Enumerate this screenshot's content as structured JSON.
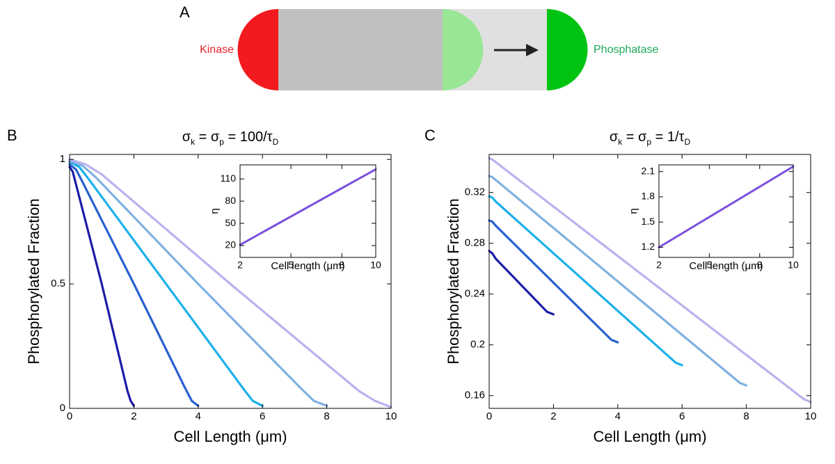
{
  "panel_labels": [
    "A",
    "B",
    "C"
  ],
  "diagram": {
    "left_label": "Kinase",
    "right_label": "Phosphatase"
  },
  "chart_data": [
    {
      "type": "line",
      "title": [
        "σ",
        "k",
        " = σ",
        "p",
        " = 100/τ",
        "D"
      ],
      "xlabel": "Cell Length (μm)",
      "ylabel": "Phosphorylated Fraction",
      "xlim": [
        0,
        10
      ],
      "ylim": [
        0,
        1.02
      ],
      "xticks": [
        0,
        2,
        4,
        6,
        8,
        10
      ],
      "yticks": [
        0,
        0.5,
        1
      ],
      "series": [
        {
          "color": "#1c1ca8",
          "x": [
            0,
            0.1,
            0.2,
            1,
            1.8,
            1.9,
            2
          ],
          "values": [
            0.97,
            0.95,
            0.9,
            0.5,
            0.07,
            0.03,
            0.01
          ]
        },
        {
          "color": "#2860d0",
          "x": [
            0,
            0.2,
            0.4,
            2,
            3.6,
            3.8,
            4
          ],
          "values": [
            0.98,
            0.96,
            0.91,
            0.5,
            0.08,
            0.03,
            0.01
          ]
        },
        {
          "color": "#1ab0ea",
          "x": [
            0,
            0.3,
            0.6,
            3,
            5.4,
            5.7,
            6
          ],
          "values": [
            0.99,
            0.97,
            0.92,
            0.5,
            0.08,
            0.03,
            0.01
          ]
        },
        {
          "color": "#80b0e2",
          "x": [
            0,
            0.4,
            0.8,
            4,
            7.2,
            7.6,
            8
          ],
          "values": [
            0.995,
            0.975,
            0.93,
            0.5,
            0.08,
            0.03,
            0.01
          ]
        },
        {
          "color": "#b8b2ee",
          "x": [
            0,
            0.5,
            1,
            5,
            9,
            9.5,
            10
          ],
          "values": [
            1,
            0.98,
            0.94,
            0.5,
            0.07,
            0.03,
            0.005
          ]
        }
      ]
    },
    {
      "type": "line",
      "xlabel": "Cell length (μm)",
      "ylabel": "η",
      "xlim": [
        2,
        10
      ],
      "ylim": [
        4,
        129
      ],
      "xticks": [
        2,
        5,
        8,
        10
      ],
      "yticks": [
        20,
        50,
        80,
        110
      ],
      "series": [
        {
          "color": "#7a4fe0",
          "x": [
            2,
            10
          ],
          "values": [
            21,
            123
          ]
        }
      ]
    },
    {
      "type": "line",
      "title": [
        "σ",
        "k",
        " = σ",
        "p",
        " = 1/τ",
        "D"
      ],
      "xlabel": "Cell Length (μm)",
      "ylabel": "Phosphorylated Fraction",
      "xlim": [
        0,
        10
      ],
      "ylim": [
        0.15,
        0.35
      ],
      "xticks": [
        0,
        2,
        4,
        6,
        8,
        10
      ],
      "yticks": [
        0.16,
        0.2,
        0.24,
        0.28,
        0.32
      ],
      "series": [
        {
          "color": "#1c1ca8",
          "x": [
            0,
            0.1,
            0.2,
            1.8,
            2
          ],
          "values": [
            0.274,
            0.272,
            0.268,
            0.226,
            0.224
          ]
        },
        {
          "color": "#2860d0",
          "x": [
            0,
            0.1,
            0.2,
            3.8,
            4
          ],
          "values": [
            0.298,
            0.297,
            0.294,
            0.204,
            0.202
          ]
        },
        {
          "color": "#1ab0ea",
          "x": [
            0,
            0.1,
            0.2,
            5.8,
            6
          ],
          "values": [
            0.317,
            0.316,
            0.313,
            0.186,
            0.184
          ]
        },
        {
          "color": "#80b0e2",
          "x": [
            0,
            0.1,
            0.2,
            7.8,
            8
          ],
          "values": [
            0.333,
            0.332,
            0.33,
            0.17,
            0.168
          ]
        },
        {
          "color": "#b8b2ee",
          "x": [
            0,
            0.1,
            0.2,
            9.8,
            10
          ],
          "values": [
            0.347,
            0.346,
            0.344,
            0.157,
            0.155
          ]
        }
      ]
    },
    {
      "type": "line",
      "xlabel": "Cell length (μm)",
      "ylabel": "η",
      "xlim": [
        2,
        10
      ],
      "ylim": [
        1.08,
        2.18
      ],
      "xticks": [
        2,
        5,
        8,
        10
      ],
      "yticks": [
        1.2,
        1.5,
        1.8,
        2.1
      ],
      "series": [
        {
          "color": "#7a4fe0",
          "x": [
            2,
            10
          ],
          "values": [
            1.2,
            2.16
          ]
        }
      ]
    }
  ]
}
